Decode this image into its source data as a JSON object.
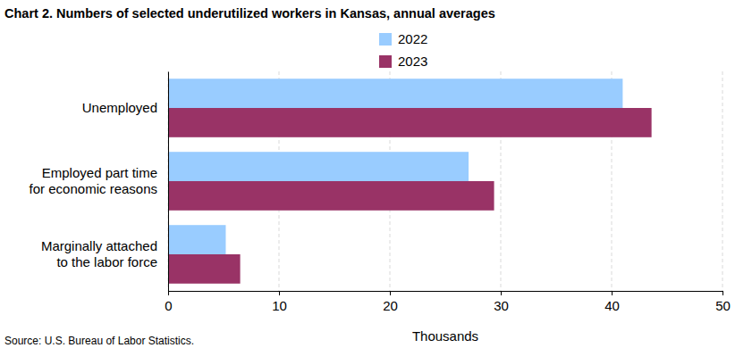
{
  "chart_data": {
    "type": "bar",
    "orientation": "horizontal",
    "title": "Chart 2. Numbers of selected underutilized workers in Kansas, annual averages",
    "categories": [
      "Unemployed",
      "Employed part time\nfor economic reasons",
      "Marginally attached\nto the labor force"
    ],
    "series": [
      {
        "name": "2022",
        "color": "#99ccff",
        "values": [
          41.0,
          27.1,
          5.2
        ]
      },
      {
        "name": "2023",
        "color": "#993366",
        "values": [
          43.6,
          29.4,
          6.5
        ]
      }
    ],
    "xlim": [
      0,
      50
    ],
    "xticks": [
      0,
      10,
      20,
      30,
      40,
      50
    ],
    "xlabel": "Thousands",
    "source": "Source: U.S. Bureau of Labor Statistics.",
    "grid": true,
    "legend": "top"
  }
}
